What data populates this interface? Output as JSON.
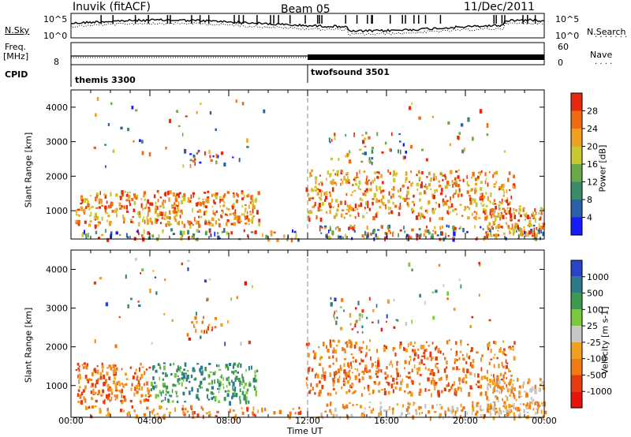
{
  "header": {
    "station": "Inuvik (fitACF)",
    "beam": "Beam 05",
    "date": "11/Dec/2011"
  },
  "top_panel": {
    "left_label": "N.Sky",
    "right_label": "N.Search",
    "tick_high": "10^5",
    "tick_low": "10^0"
  },
  "freq_panel": {
    "left_label_1": "Freq.",
    "left_label_2": "[MHz]",
    "left_tick": "8",
    "right_label": "Nave",
    "right_tick_high": "60",
    "right_tick_low": "0"
  },
  "cpid": {
    "label": "CPID",
    "modes": [
      {
        "name": "themis 3300",
        "start_hour": 0
      },
      {
        "name": "twofsound 3501",
        "start_hour": 12
      }
    ]
  },
  "chart_data": [
    {
      "type": "heatmap",
      "name": "power",
      "ylabel": "Slant Range [km]",
      "ylim": [
        180,
        4500
      ],
      "yticks": [
        "1000",
        "2000",
        "3000",
        "4000"
      ],
      "colorbar_label": "Power [dB]",
      "colorbar_ticks": [
        "4",
        "8",
        "12",
        "16",
        "20",
        "24",
        "28"
      ],
      "colorbar_colors": [
        "#1a1aff",
        "#2a60a8",
        "#3c8c6a",
        "#6aa84a",
        "#c8c832",
        "#f0a020",
        "#f06a14",
        "#e62a10"
      ]
    },
    {
      "type": "heatmap",
      "name": "velocity",
      "ylabel": "Slant Range [km]",
      "ylim": [
        180,
        4500
      ],
      "yticks": [
        "1000",
        "2000",
        "3000",
        "4000"
      ],
      "colorbar_label": "Velocity [m s-1]",
      "colorbar_ticks": [
        "1000",
        "500",
        "100",
        "25",
        "-25",
        "-100",
        "-500",
        "-1000"
      ],
      "colorbar_colors": [
        "#2a44c8",
        "#2a7a8a",
        "#3c9a50",
        "#7ac83c",
        "#c8c8c8",
        "#f0a020",
        "#f07a14",
        "#e63a10",
        "#e6140a"
      ]
    }
  ],
  "xaxis": {
    "label": "Time UT",
    "ticks": [
      "00:00",
      "04:00",
      "08:00",
      "12:00",
      "16:00",
      "20:00",
      "00:00"
    ],
    "range_hours": [
      0,
      24
    ]
  }
}
